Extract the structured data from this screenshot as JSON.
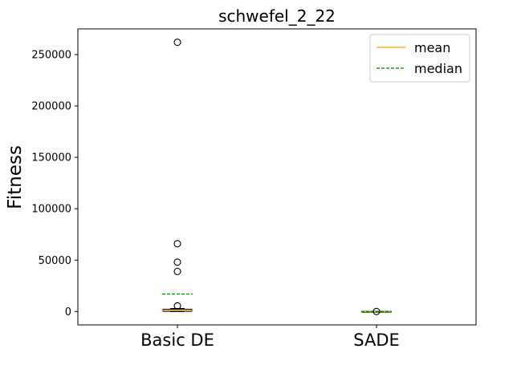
{
  "chart_data": {
    "type": "box",
    "title": "schwefel_2_22",
    "xlabel": "",
    "ylabel": "Fitness",
    "categories": [
      "Basic DE",
      "SADE"
    ],
    "ylim": [
      -13000,
      275000
    ],
    "yticks": [
      0,
      50000,
      100000,
      150000,
      200000,
      250000
    ],
    "ytick_labels": [
      "0",
      "50000",
      "100000",
      "150000",
      "200000",
      "250000"
    ],
    "grid": false,
    "legend": {
      "placement": "top-right",
      "entries": [
        {
          "label": "mean",
          "style": "solid",
          "color": "#ffa500"
        },
        {
          "label": "median",
          "style": "dashed",
          "color": "#008000"
        }
      ]
    },
    "boxes": [
      {
        "category": "Basic DE",
        "q1": 200,
        "q3": 2200,
        "whisker_low": 0,
        "whisker_high": 3000,
        "mean_line": 1000,
        "median_line": 17000,
        "fliers": [
          262000,
          66000,
          48000,
          39000,
          5500
        ]
      },
      {
        "category": "SADE",
        "q1": -200,
        "q3": 200,
        "whisker_low": -300,
        "whisker_high": 300,
        "mean_line": 0,
        "median_line": 0,
        "fliers": [
          0
        ]
      }
    ],
    "colors": {
      "mean": "#ffa500",
      "median": "#008000",
      "box": "#000000"
    }
  }
}
